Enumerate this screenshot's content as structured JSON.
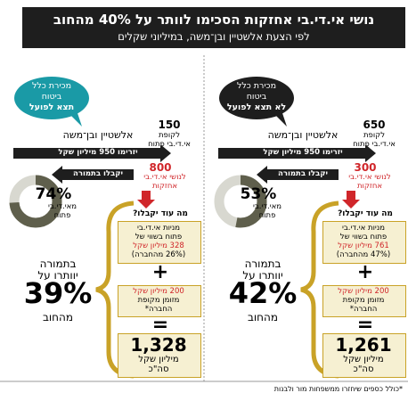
{
  "header": {
    "title": "נושי אי.די.בי אחזקות הסכימו לוותר על 40% מהחוב",
    "subtitle": "לפי הצעת אלשטיין ובן־משה, במיליוני שקלים"
  },
  "panels": [
    {
      "bubble": [
        "מכירת כלל",
        "ביטוח",
        "לא תצא לפועל"
      ],
      "to_fund": {
        "amount": "650",
        "lines": [
          "לקופת",
          "אי.די.בי פתוח"
        ]
      },
      "investors": "אלשטיין ובן־משה",
      "inflow_arrow": "יזרימו 950 מיליון שקל",
      "to_creditors": {
        "amount": "300",
        "lines": [
          "לנושי אי.די.בי",
          "אחזקות"
        ]
      },
      "return_arrow": "יקבלו בתמורה",
      "donut": {
        "value": 53,
        "label": "53%",
        "caption": [
          "מאי.די.בי",
          "פתוח"
        ]
      },
      "question": "מה עוד יקבלו?",
      "shares_box": [
        "מניות אי.די.בי",
        "פתוח בשווי של",
        "761 מיליון שקל",
        "(47% מהחברה)"
      ],
      "plus": "+",
      "cash_box": [
        "200 מיליון שקל",
        "מזומן מקופת",
        "החברה*"
      ],
      "equals": "=",
      "total_box": {
        "amount": "1,261",
        "lines": [
          "מיליון שקל",
          "סה\"כ"
        ]
      },
      "waiver": {
        "lines": [
          "בתמורה",
          "יוותרו על"
        ],
        "percent": "42%",
        "tail": "מהחוב"
      }
    },
    {
      "bubble": [
        "מכירת כלל",
        "ביטוח",
        "תצא לפועל"
      ],
      "to_fund": {
        "amount": "150",
        "lines": [
          "לקופת",
          "אי.די.בי פתוח"
        ]
      },
      "investors": "אלשטיין ובן־משה",
      "inflow_arrow": "יזרימו 950 מיליון שקל",
      "to_creditors": {
        "amount": "800",
        "lines": [
          "לנושי אי.די.בי",
          "אחזקות"
        ]
      },
      "return_arrow": "יקבלו בתמורה",
      "donut": {
        "value": 74,
        "label": "74%",
        "caption": [
          "מאי.די.בי",
          "פתוח"
        ]
      },
      "question": "מה עוד יקבלו?",
      "shares_box": [
        "מניות אי.די.בי",
        "פתוח בשווי של",
        "328 מיליון שקל",
        "(26% מהחברה)"
      ],
      "plus": "+",
      "cash_box": [
        "200 מיליון שקל",
        "מזומן מקופת",
        "החברה*"
      ],
      "equals": "=",
      "total_box": {
        "amount": "1,328",
        "lines": [
          "מיליון שקל",
          "סה\"כ"
        ]
      },
      "waiver": {
        "lines": [
          "בתמורה",
          "יוותרו על"
        ],
        "percent": "39%",
        "tail": "מהחוב"
      }
    }
  ],
  "footnote": "*כולל כספים שיחזרו ממשפחות מור ולבנות"
}
